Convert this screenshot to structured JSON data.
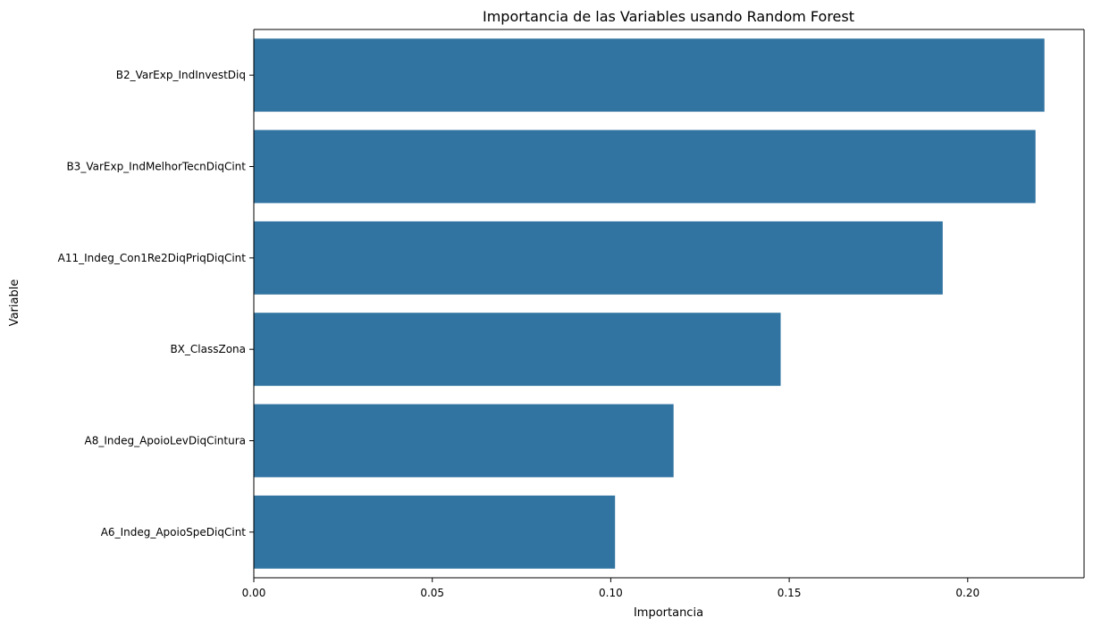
{
  "chart_data": {
    "type": "bar",
    "orientation": "horizontal",
    "title": "Importancia de las Variables usando Random Forest",
    "xlabel": "Importancia",
    "ylabel": "Variable",
    "categories": [
      "B2_VarExp_IndInvestDiq",
      "B3_VarExp_IndMelhorTecnDiqCint",
      "A11_Indeg_Con1Re2DiqPriqDiqCint",
      "BX_ClassZona",
      "A8_Indeg_ApoioLevDiqCintura",
      "A6_Indeg_ApoioSpeDiqCint"
    ],
    "values": [
      0.2215,
      0.219,
      0.193,
      0.1476,
      0.1176,
      0.1012
    ],
    "xlim": [
      0,
      0.2326
    ],
    "xticks": [
      0.0,
      0.05,
      0.1,
      0.15,
      0.2
    ],
    "xtick_labels": [
      "0.00",
      "0.05",
      "0.10",
      "0.15",
      "0.20"
    ],
    "grid": false,
    "colors": {
      "bar": "#3274a1",
      "axis": "#000000",
      "background": "#ffffff"
    }
  }
}
